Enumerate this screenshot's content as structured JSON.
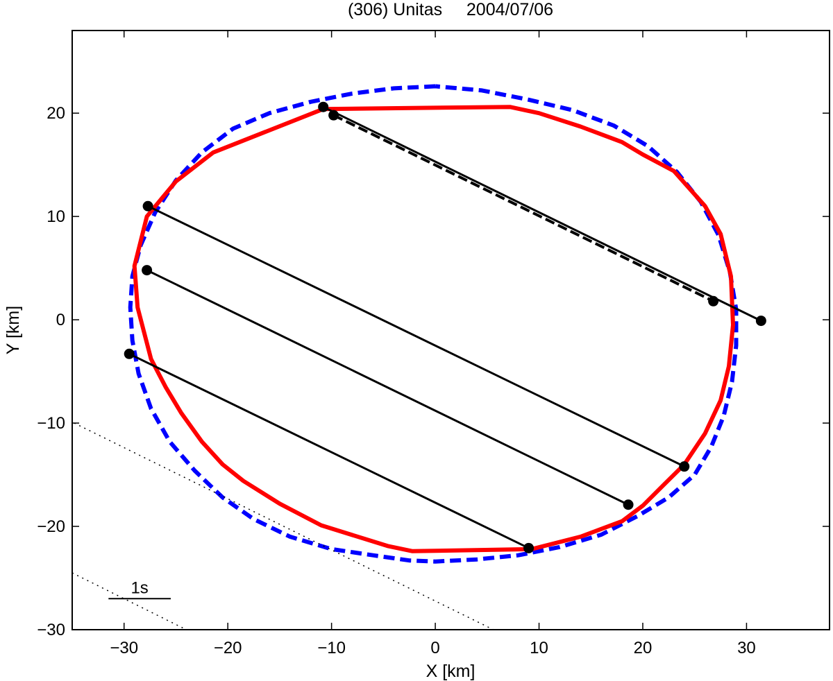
{
  "chart_data": {
    "type": "line",
    "title": "(306) Unitas     2004/07/06",
    "xlabel": "X [km]",
    "ylabel": "Y [km]",
    "xlim": [
      -35,
      38
    ],
    "ylim": [
      -30,
      28
    ],
    "xticks": [
      -30,
      -20,
      -10,
      0,
      10,
      20,
      30
    ],
    "yticks": [
      -30,
      -20,
      -10,
      0,
      10,
      20
    ],
    "tick_labels_x": [
      "−30",
      "−20",
      "−10",
      "0",
      "10",
      "20",
      "30"
    ],
    "tick_labels_y": [
      "−30",
      "−20",
      "−10",
      "0",
      "10",
      "20"
    ],
    "grid": false,
    "scale_bar": {
      "label": "1s",
      "x": [
        -31.5,
        -25.5
      ],
      "y": -27
    },
    "series": [
      {
        "style": "dashed",
        "color": "#0000ff",
        "points": [
          [
            0,
            22.6
          ],
          [
            -4,
            22.4
          ],
          [
            -8,
            21.9
          ],
          [
            -12,
            21.1
          ],
          [
            -16,
            20.0
          ],
          [
            -19.5,
            18.5
          ],
          [
            -22.5,
            16.2
          ],
          [
            -25,
            13.5
          ],
          [
            -27,
            10.4
          ],
          [
            -28.4,
            7.2
          ],
          [
            -29.2,
            4.2
          ],
          [
            -29.4,
            1.2
          ],
          [
            -29.2,
            -2.0
          ],
          [
            -28.6,
            -5.2
          ],
          [
            -27.4,
            -8.6
          ],
          [
            -25.6,
            -11.8
          ],
          [
            -23.2,
            -14.6
          ],
          [
            -20.5,
            -17.2
          ],
          [
            -17.5,
            -19.3
          ],
          [
            -14,
            -21.0
          ],
          [
            -10,
            -22.2
          ],
          [
            -6,
            -22.8
          ],
          [
            -2.5,
            -23.3
          ],
          [
            0,
            -23.4
          ],
          [
            4,
            -23.2
          ],
          [
            8,
            -22.8
          ],
          [
            12,
            -22.0
          ],
          [
            16,
            -20.8
          ],
          [
            19.5,
            -19.0
          ],
          [
            22.5,
            -17.2
          ],
          [
            25,
            -15.0
          ],
          [
            26.6,
            -12.3
          ],
          [
            27.8,
            -9.3
          ],
          [
            28.6,
            -6.0
          ],
          [
            29.0,
            -2.5
          ],
          [
            29.0,
            1.0
          ],
          [
            28.4,
            4.6
          ],
          [
            27.3,
            8.2
          ],
          [
            25.6,
            11.4
          ],
          [
            23.3,
            14.3
          ],
          [
            20.5,
            16.8
          ],
          [
            17.2,
            18.8
          ],
          [
            13.2,
            20.3
          ],
          [
            9,
            21.3
          ],
          [
            4.5,
            22.2
          ],
          [
            0,
            22.6
          ]
        ]
      },
      {
        "style": "solid",
        "color": "#ff0000",
        "points": [
          [
            -10.8,
            20.4
          ],
          [
            7.2,
            20.6
          ],
          [
            10,
            20.0
          ],
          [
            14,
            18.7
          ],
          [
            18,
            17.2
          ],
          [
            20,
            16.0
          ],
          [
            23,
            14.4
          ],
          [
            26,
            11.0
          ],
          [
            27.5,
            8.3
          ],
          [
            28.5,
            4.2
          ],
          [
            28.7,
            -0.5
          ],
          [
            28.3,
            -4.5
          ],
          [
            27.5,
            -7.8
          ],
          [
            26,
            -11.0
          ],
          [
            24,
            -14.0
          ],
          [
            22,
            -16.0
          ],
          [
            20,
            -18.0
          ],
          [
            18,
            -19.5
          ],
          [
            14,
            -21.0
          ],
          [
            9.3,
            -22.2
          ],
          [
            -2.2,
            -22.4
          ],
          [
            -4.6,
            -21.9
          ],
          [
            -11,
            -19.9
          ],
          [
            -15,
            -17.8
          ],
          [
            -18.5,
            -15.6
          ],
          [
            -20.5,
            -14.0
          ],
          [
            -22.5,
            -11.8
          ],
          [
            -24.5,
            -9.0
          ],
          [
            -26,
            -6.5
          ],
          [
            -27.4,
            -3.8
          ],
          [
            -28.7,
            1.2
          ],
          [
            -29,
            5.2
          ],
          [
            -27.8,
            10.0
          ],
          [
            -26.4,
            11.7
          ],
          [
            -25,
            13.4
          ],
          [
            -21.4,
            16.2
          ],
          [
            -10.8,
            20.4
          ]
        ]
      },
      {
        "style": "solid",
        "color": "#000000",
        "points": [
          [
            -10.8,
            20.6
          ],
          [
            31.4,
            -0.1
          ]
        ]
      },
      {
        "style": "dashed",
        "color": "#000000",
        "points": [
          [
            -9.8,
            19.8
          ],
          [
            26.8,
            1.8
          ]
        ]
      },
      {
        "style": "solid",
        "color": "#000000",
        "points": [
          [
            -27.7,
            11.0
          ],
          [
            24.0,
            -14.2
          ]
        ]
      },
      {
        "style": "solid",
        "color": "#000000",
        "points": [
          [
            -27.8,
            4.8
          ],
          [
            18.6,
            -17.9
          ]
        ]
      },
      {
        "style": "solid",
        "color": "#000000",
        "points": [
          [
            -29.5,
            -3.3
          ],
          [
            9.0,
            -22.1
          ]
        ]
      },
      {
        "style": "dotted",
        "color": "#000000",
        "points": [
          [
            -34.8,
            -10.0
          ],
          [
            5.6,
            -30.0
          ]
        ]
      },
      {
        "style": "dotted",
        "color": "#000000",
        "points": [
          [
            -35.0,
            -24.5
          ],
          [
            -24.0,
            -30.0
          ]
        ]
      }
    ],
    "markers": [
      [
        -10.8,
        20.6
      ],
      [
        -9.8,
        19.8
      ],
      [
        31.4,
        -0.1
      ],
      [
        26.8,
        1.8
      ],
      [
        -27.7,
        11.0
      ],
      [
        24.0,
        -14.2
      ],
      [
        -27.8,
        4.8
      ],
      [
        18.6,
        -17.9
      ],
      [
        -29.5,
        -3.3
      ],
      [
        9.0,
        -22.1
      ]
    ]
  }
}
